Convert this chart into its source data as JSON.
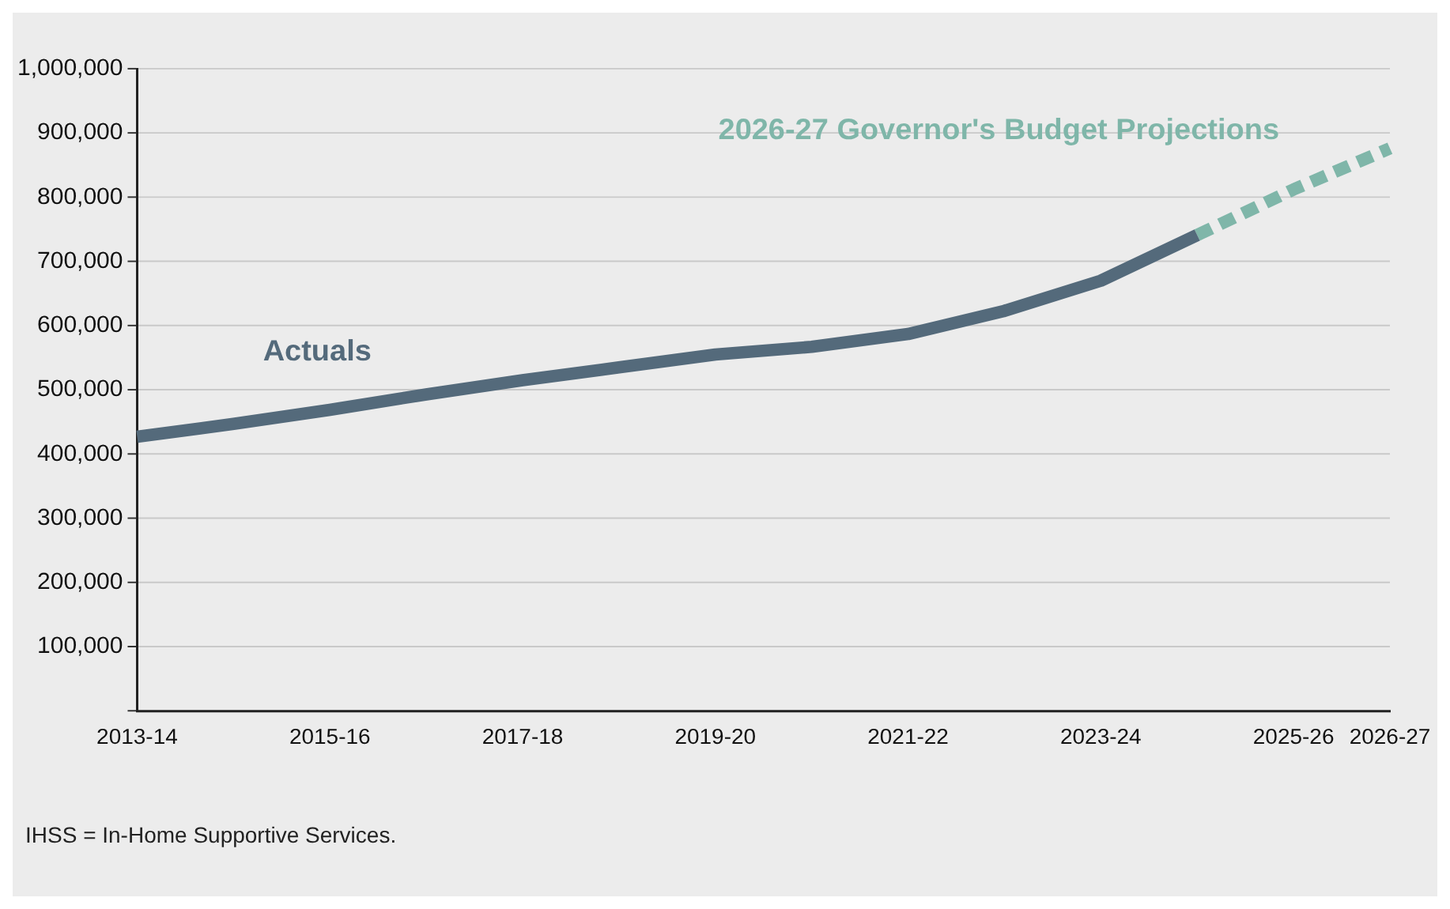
{
  "chart_data": {
    "type": "line",
    "categories": [
      "2013-14",
      null,
      "2015-16",
      null,
      "2017-18",
      null,
      "2019-20",
      null,
      "2021-22",
      null,
      "2023-24",
      null,
      "2025-26",
      "2026-27"
    ],
    "series": [
      {
        "name": "Actuals",
        "color": "#546a7b",
        "line_style": "solid",
        "values": [
          427000,
          447000,
          469000,
          493000,
          515000,
          535000,
          555000,
          567000,
          587000,
          623000,
          670000,
          741000,
          null,
          null
        ]
      },
      {
        "name": "2026-27 Governor's Budget Projections",
        "color": "#7fb6a9",
        "line_style": "dashed",
        "values": [
          null,
          null,
          null,
          null,
          null,
          null,
          null,
          null,
          null,
          null,
          null,
          741000,
          812000,
          876000
        ]
      }
    ],
    "ylim": [
      0,
      1000000
    ],
    "yticks": [
      {
        "value": 0,
        "label": null
      },
      {
        "value": 100000,
        "label": "100,000"
      },
      {
        "value": 200000,
        "label": "200,000"
      },
      {
        "value": 300000,
        "label": "300,000"
      },
      {
        "value": 400000,
        "label": "400,000"
      },
      {
        "value": 500000,
        "label": "500,000"
      },
      {
        "value": 600000,
        "label": "600,000"
      },
      {
        "value": 700000,
        "label": "700,000"
      },
      {
        "value": 800000,
        "label": "800,000"
      },
      {
        "value": 900000,
        "label": "900,000"
      },
      {
        "value": 1000000,
        "label": "1,000,000"
      }
    ],
    "grid": "y",
    "legend": false,
    "marker": "none",
    "annotations": [
      "IHSS = In-Home Supportive Services."
    ]
  }
}
